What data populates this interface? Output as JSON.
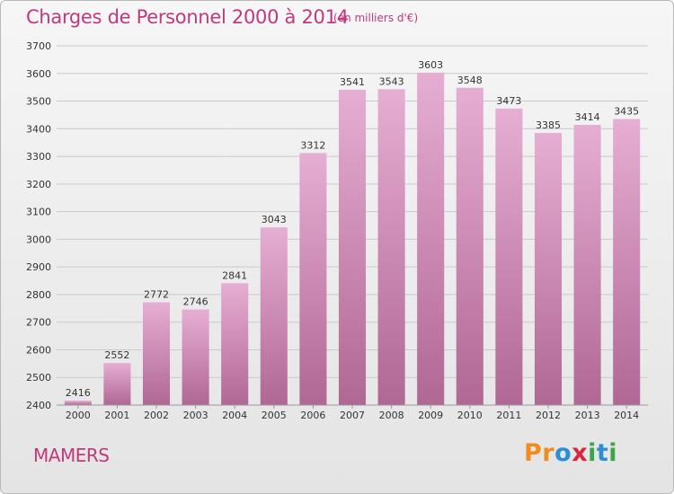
{
  "header": {
    "title": "Charges de Personnel 2000 à 2014",
    "unit": "(en milliers d'€)"
  },
  "footer": {
    "commune": "MAMERS",
    "logo_letters": [
      "P",
      "r",
      "o",
      "x",
      "i",
      "t",
      "i"
    ],
    "logo_colors": [
      "#f28c1e",
      "#f28c1e",
      "#2b8fd6",
      "#d7263d",
      "#3aa64a",
      "#2b8fd6",
      "#3aa64a"
    ]
  },
  "colors": {
    "title": "#c0397e",
    "bar_top": "#e6aed3",
    "bar_bottom": "#b06794",
    "grid": "#c9c9c9"
  },
  "chart_data": {
    "type": "bar",
    "title": "Charges de Personnel 2000 à 2014",
    "xlabel": "",
    "ylabel": "",
    "categories": [
      "2000",
      "2001",
      "2002",
      "2003",
      "2004",
      "2005",
      "2006",
      "2007",
      "2008",
      "2009",
      "2010",
      "2011",
      "2012",
      "2013",
      "2014"
    ],
    "values": [
      2416,
      2552,
      2772,
      2746,
      2841,
      3043,
      3312,
      3541,
      3543,
      3603,
      3548,
      3473,
      3385,
      3414,
      3435
    ],
    "ylim": [
      2400,
      3700
    ],
    "yticks": [
      2400,
      2500,
      2600,
      2700,
      2800,
      2900,
      3000,
      3100,
      3200,
      3300,
      3400,
      3500,
      3600,
      3700
    ],
    "grid": true,
    "data_labels": true
  }
}
